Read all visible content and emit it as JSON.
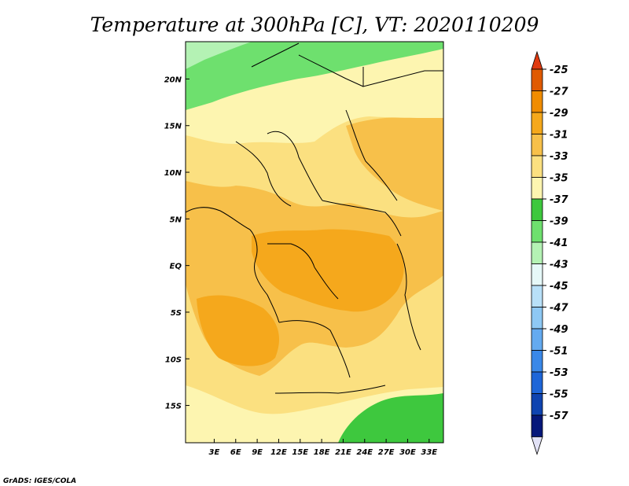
{
  "title": "Temperature at 300hPa [C], VT: 2020110209",
  "credit": "GrADS: IGES/COLA",
  "map": {
    "lon_range": [
      -1,
      35
    ],
    "lat_range": [
      -19,
      24
    ],
    "x_ticks": [
      {
        "label": "3E",
        "lon": 3
      },
      {
        "label": "6E",
        "lon": 6
      },
      {
        "label": "9E",
        "lon": 9
      },
      {
        "label": "12E",
        "lon": 12
      },
      {
        "label": "15E",
        "lon": 15
      },
      {
        "label": "18E",
        "lon": 18
      },
      {
        "label": "21E",
        "lon": 21
      },
      {
        "label": "24E",
        "lon": 24
      },
      {
        "label": "27E",
        "lon": 27
      },
      {
        "label": "30E",
        "lon": 30
      },
      {
        "label": "33E",
        "lon": 33
      }
    ],
    "y_ticks": [
      {
        "label": "20N",
        "lat": 20
      },
      {
        "label": "15N",
        "lat": 15
      },
      {
        "label": "10N",
        "lat": 10
      },
      {
        "label": "5N",
        "lat": 5
      },
      {
        "label": "EQ",
        "lat": 0
      },
      {
        "label": "5S",
        "lat": -5
      },
      {
        "label": "10S",
        "lat": -10
      },
      {
        "label": "15S",
        "lat": -15
      }
    ]
  },
  "colorbar": {
    "levels": [
      {
        "label": "-25",
        "color": "#e05a00"
      },
      {
        "label": "-27",
        "color": "#f08c00"
      },
      {
        "label": "-29",
        "color": "#f5a81c"
      },
      {
        "label": "-31",
        "color": "#f7c04a"
      },
      {
        "label": "-33",
        "color": "#fbe080"
      },
      {
        "label": "-35",
        "color": "#fdf5b0"
      },
      {
        "label": "-37",
        "color": "#3ec83e"
      },
      {
        "label": "-39",
        "color": "#6ee06e"
      },
      {
        "label": "-41",
        "color": "#b4f2b4"
      },
      {
        "label": "-43",
        "color": "#e6f8f8"
      },
      {
        "label": "-45",
        "color": "#b8e0f8"
      },
      {
        "label": "-47",
        "color": "#8ec8f4"
      },
      {
        "label": "-49",
        "color": "#64aaf0"
      },
      {
        "label": "-51",
        "color": "#3a88e8"
      },
      {
        "label": "-53",
        "color": "#1e66d8"
      },
      {
        "label": "-55",
        "color": "#0f44b0"
      },
      {
        "label": "-57",
        "color": "#06187a"
      }
    ],
    "top_arrow_color": "#e03a10",
    "bottom_arrow_color": "#e2e2f6"
  }
}
